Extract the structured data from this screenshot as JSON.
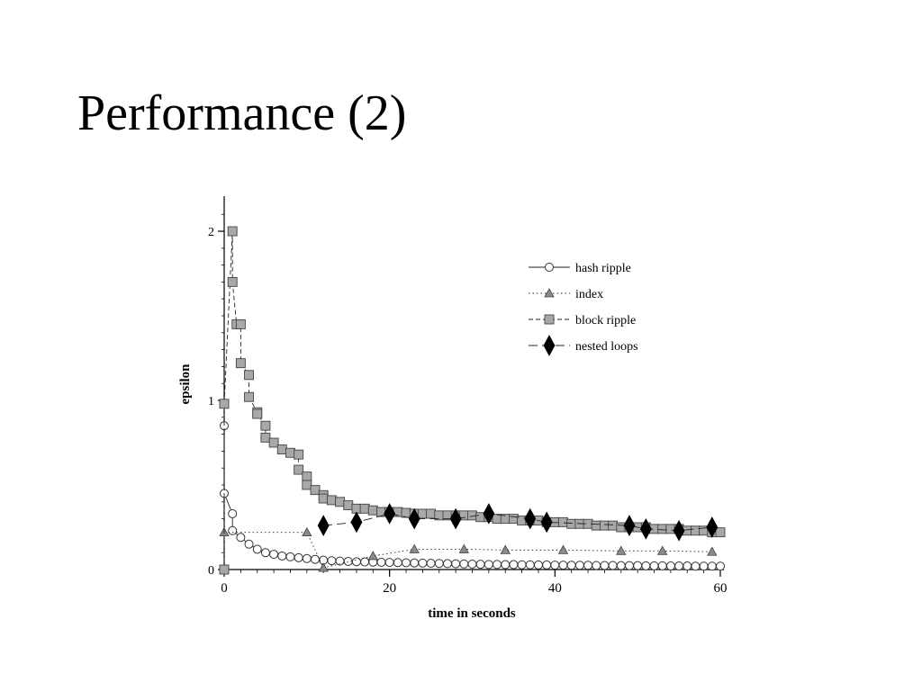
{
  "slide": {
    "title": "Performance (2)"
  },
  "chart_data": {
    "type": "line",
    "xlabel": "time in seconds",
    "ylabel": "epsilon",
    "xlim": [
      0,
      60
    ],
    "ylim": [
      0,
      2.2
    ],
    "xticks": [
      "0",
      "20",
      "40",
      "60"
    ],
    "yticks": [
      "0",
      "1",
      "2"
    ],
    "legend_position": "top-right",
    "series": [
      {
        "name": "hash ripple",
        "marker": "circle",
        "line": "solid",
        "x": [
          0,
          0,
          1,
          1,
          2,
          3,
          4,
          5,
          6,
          7,
          8,
          9,
          10,
          11,
          12,
          13,
          14,
          15,
          16,
          17,
          18,
          19,
          20,
          21,
          22,
          23,
          24,
          25,
          26,
          27,
          28,
          29,
          30,
          31,
          32,
          33,
          34,
          35,
          36,
          37,
          38,
          39,
          40,
          41,
          42,
          43,
          44,
          45,
          46,
          47,
          48,
          49,
          50,
          51,
          52,
          53,
          54,
          55,
          56,
          57,
          58,
          59,
          60
        ],
        "y": [
          0.85,
          0.45,
          0.33,
          0.23,
          0.19,
          0.15,
          0.12,
          0.1,
          0.09,
          0.08,
          0.075,
          0.07,
          0.065,
          0.06,
          0.055,
          0.052,
          0.05,
          0.048,
          0.046,
          0.045,
          0.044,
          0.043,
          0.042,
          0.041,
          0.04,
          0.039,
          0.038,
          0.037,
          0.036,
          0.035,
          0.034,
          0.033,
          0.032,
          0.031,
          0.03,
          0.03,
          0.029,
          0.029,
          0.028,
          0.028,
          0.027,
          0.027,
          0.026,
          0.026,
          0.025,
          0.025,
          0.025,
          0.024,
          0.024,
          0.024,
          0.023,
          0.023,
          0.023,
          0.022,
          0.022,
          0.022,
          0.021,
          0.021,
          0.021,
          0.02,
          0.02,
          0.02,
          0.02
        ]
      },
      {
        "name": "index",
        "marker": "triangle",
        "line": "dotted",
        "x": [
          0,
          10,
          12,
          18,
          23,
          29,
          34,
          41,
          48,
          53,
          59
        ],
        "y": [
          0.22,
          0.22,
          0.01,
          0.08,
          0.12,
          0.12,
          0.115,
          0.115,
          0.11,
          0.11,
          0.105
        ]
      },
      {
        "name": "block ripple",
        "marker": "square",
        "line": "dashed",
        "x": [
          0,
          0,
          1,
          1,
          1.5,
          2,
          2,
          3,
          3,
          4,
          4,
          5,
          5,
          6,
          7,
          8,
          9,
          9,
          10,
          10,
          11,
          12,
          12,
          13,
          14,
          15,
          16,
          17,
          18,
          19,
          20,
          21,
          22,
          23,
          24,
          25,
          26,
          27,
          28,
          29,
          30,
          31,
          32,
          33,
          34,
          35,
          36,
          37,
          38,
          39,
          40,
          41,
          42,
          43,
          44,
          45,
          46,
          47,
          48,
          49,
          50,
          51,
          52,
          53,
          54,
          55,
          56,
          57,
          58,
          59,
          60
        ],
        "y": [
          0,
          0.98,
          2.0,
          1.7,
          1.45,
          1.45,
          1.22,
          1.15,
          1.02,
          0.93,
          0.92,
          0.85,
          0.78,
          0.75,
          0.71,
          0.69,
          0.68,
          0.59,
          0.55,
          0.5,
          0.47,
          0.44,
          0.42,
          0.41,
          0.4,
          0.38,
          0.36,
          0.36,
          0.35,
          0.34,
          0.34,
          0.34,
          0.335,
          0.33,
          0.33,
          0.33,
          0.32,
          0.32,
          0.32,
          0.32,
          0.32,
          0.31,
          0.31,
          0.3,
          0.3,
          0.3,
          0.29,
          0.29,
          0.29,
          0.28,
          0.28,
          0.28,
          0.27,
          0.27,
          0.27,
          0.26,
          0.26,
          0.26,
          0.25,
          0.25,
          0.25,
          0.25,
          0.24,
          0.24,
          0.24,
          0.24,
          0.23,
          0.23,
          0.23,
          0.22,
          0.22
        ]
      },
      {
        "name": "nested loops",
        "marker": "diamond",
        "line": "long-dash",
        "x": [
          12,
          16,
          20,
          23,
          28,
          32,
          37,
          39,
          49,
          51,
          55,
          59
        ],
        "y": [
          0.26,
          0.28,
          0.33,
          0.3,
          0.3,
          0.33,
          0.3,
          0.28,
          0.26,
          0.24,
          0.23,
          0.25
        ]
      }
    ]
  }
}
